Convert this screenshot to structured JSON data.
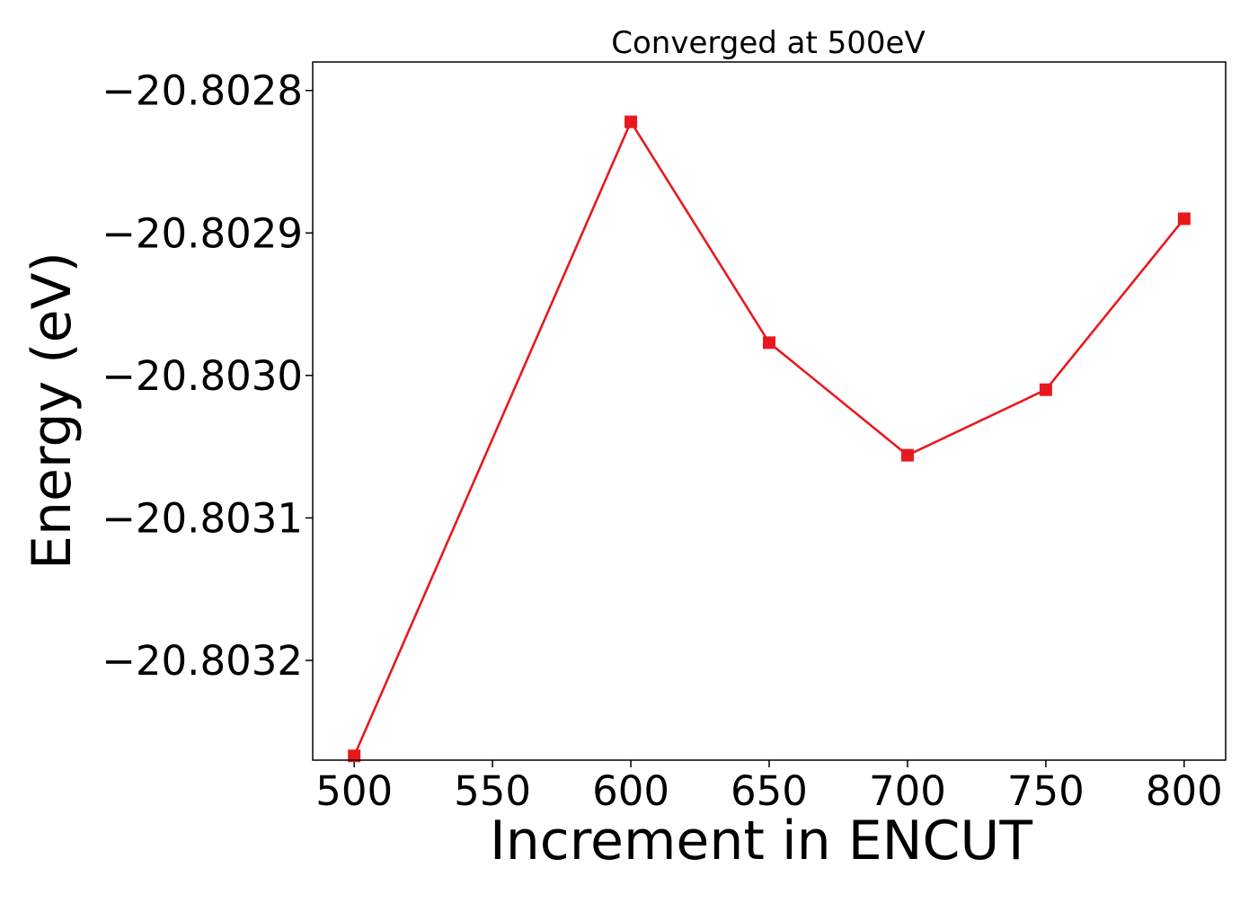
{
  "chart_data": {
    "type": "line",
    "title": "Converged at 500eV",
    "xlabel": "Increment in ENCUT",
    "ylabel": "Energy (eV)",
    "xlim": [
      485,
      815
    ],
    "ylim": [
      -20.80327,
      -20.80278
    ],
    "x_ticks": [
      500,
      550,
      600,
      650,
      700,
      750,
      800
    ],
    "x_tick_labels": [
      "500",
      "550",
      "600",
      "650",
      "700",
      "750",
      "800"
    ],
    "y_ticks": [
      -20.8028,
      -20.8029,
      -20.803,
      -20.8031,
      -20.8032
    ],
    "y_tick_labels": [
      "−20.8028",
      "−20.8029",
      "−20.8030",
      "−20.8031",
      "−20.8032"
    ],
    "grid": false,
    "legend": "none",
    "series": [
      {
        "color": "#e8191e",
        "marker": "square",
        "x": [
          500,
          600,
          650,
          700,
          750,
          800
        ],
        "y": [
          -20.803267,
          -20.802822,
          -20.802977,
          -20.803056,
          -20.80301,
          -20.80289
        ]
      }
    ]
  }
}
